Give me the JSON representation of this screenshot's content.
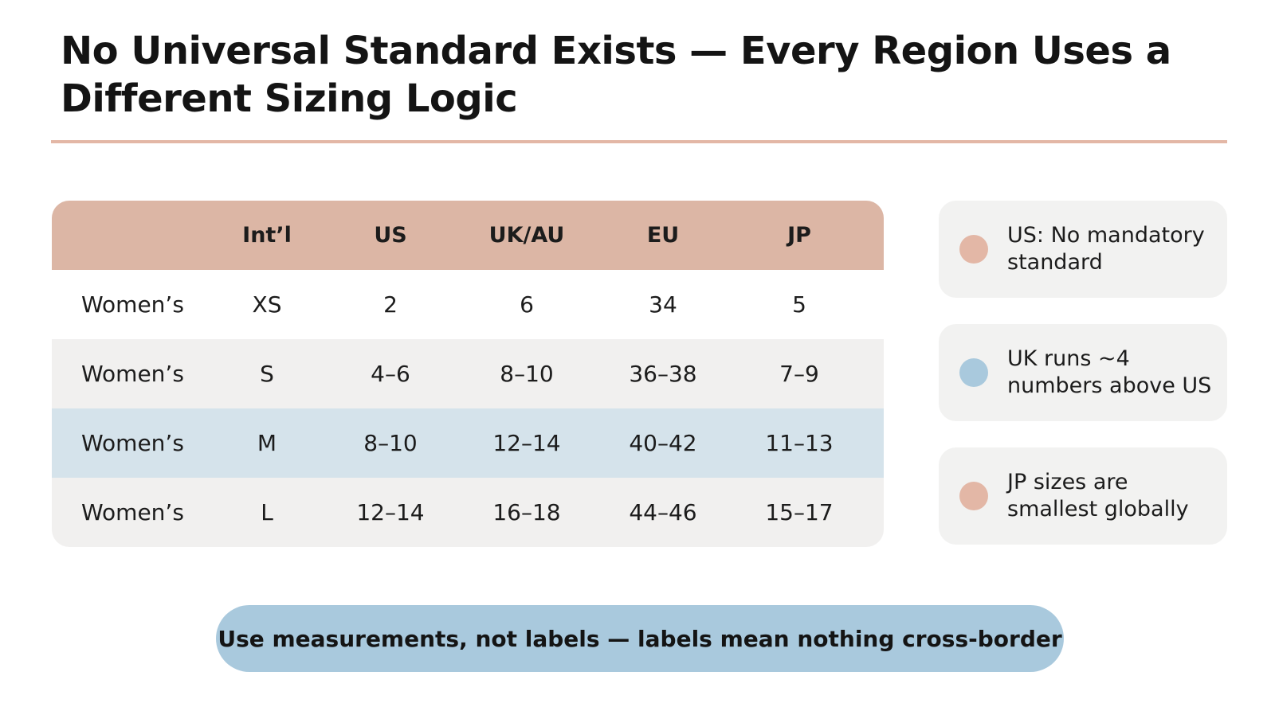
{
  "title": "No Universal Standard Exists — Every Region Uses a Different Sizing Logic",
  "colors": {
    "accent_peach": "#dcb6a5",
    "accent_blue": "#a9c9dd",
    "highlight_row": "#d5e3eb"
  },
  "table": {
    "headers": [
      "",
      "Int’l",
      "US",
      "UK/AU",
      "EU",
      "JP"
    ],
    "rows": [
      [
        "Women’s",
        "XS",
        "2",
        "6",
        "34",
        "5"
      ],
      [
        "Women’s",
        "S",
        "4–6",
        "8–10",
        "36–38",
        "7–9"
      ],
      [
        "Women’s",
        "M",
        "8–10",
        "12–14",
        "40–42",
        "11–13"
      ],
      [
        "Women’s",
        "L",
        "12–14",
        "16–18",
        "44–46",
        "15–17"
      ]
    ]
  },
  "callouts": [
    {
      "text": "US: No mandatory standard",
      "color": "#e3b7a6"
    },
    {
      "text": "UK runs ~4 numbers above US",
      "color": "#a9c9dd"
    },
    {
      "text": "JP sizes are smallest globally",
      "color": "#e3b7a6"
    }
  ],
  "banner": "Use measurements, not labels — labels mean nothing cross-border"
}
